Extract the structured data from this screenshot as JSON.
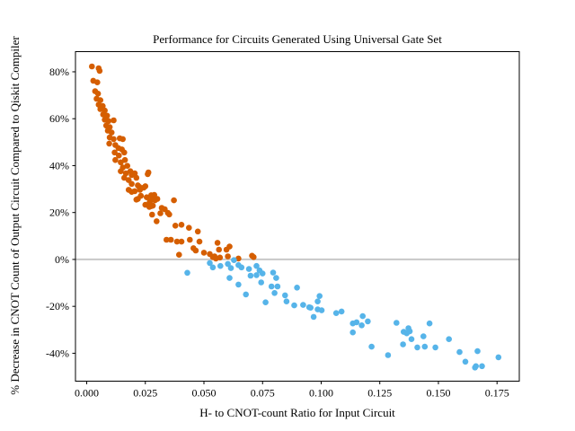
{
  "chart_data": {
    "type": "scatter",
    "title": "Performance for Circuits Generated Using Universal Gate Set",
    "xlabel": "H- to CNOT-count Ratio for Input Circuit",
    "ylabel": "% Decrease in CNOT Count of Output Circuit Compared to Qiskit Compiler",
    "xlim": [
      -0.0048,
      0.1845
    ],
    "ylim": [
      -51.9,
      88.6
    ],
    "grid": false,
    "legend": "none",
    "zero_line": {
      "y": 0,
      "color": "#c8c8c8"
    },
    "axis_color": "#000000",
    "x_ticks": {
      "values": [
        0.0,
        0.025,
        0.05,
        0.075,
        0.1,
        0.125,
        0.15,
        0.175
      ],
      "labels": [
        "0.000",
        "0.025",
        "0.050",
        "0.075",
        "0.100",
        "0.125",
        "0.150",
        "0.175"
      ]
    },
    "y_ticks": {
      "values": [
        -40,
        -20,
        0,
        20,
        40,
        60,
        80
      ],
      "labels": [
        "-40%",
        "-20%",
        "0%",
        "20%",
        "40%",
        "60%",
        "80%"
      ]
    },
    "series": [
      {
        "name": "orange",
        "color": "#D55E00",
        "points": [
          [
            0.0022,
            82.3
          ],
          [
            0.0051,
            81.5
          ],
          [
            0.0055,
            80.4
          ],
          [
            0.0028,
            76.2
          ],
          [
            0.0045,
            75.5
          ],
          [
            0.0036,
            71.7
          ],
          [
            0.0048,
            70.7
          ],
          [
            0.0042,
            68.5
          ],
          [
            0.0058,
            67.9
          ],
          [
            0.0051,
            66.0
          ],
          [
            0.0068,
            65.4
          ],
          [
            0.0058,
            64.1
          ],
          [
            0.0077,
            63.5
          ],
          [
            0.007,
            61.8
          ],
          [
            0.0087,
            61.3
          ],
          [
            0.0077,
            59.6
          ],
          [
            0.0093,
            59.0
          ],
          [
            0.0115,
            59.3
          ],
          [
            0.0083,
            57.1
          ],
          [
            0.0098,
            56.4
          ],
          [
            0.009,
            54.9
          ],
          [
            0.0106,
            54.1
          ],
          [
            0.0098,
            52.0
          ],
          [
            0.0115,
            51.3
          ],
          [
            0.0096,
            49.4
          ],
          [
            0.0122,
            48.8
          ],
          [
            0.0141,
            51.6
          ],
          [
            0.0154,
            51.3
          ],
          [
            0.0135,
            47.5
          ],
          [
            0.015,
            46.9
          ],
          [
            0.0119,
            45.6
          ],
          [
            0.0137,
            44.3
          ],
          [
            0.016,
            45.6
          ],
          [
            0.0122,
            42.4
          ],
          [
            0.0145,
            41.4
          ],
          [
            0.0163,
            42.4
          ],
          [
            0.0154,
            39.2
          ],
          [
            0.0173,
            39.9
          ],
          [
            0.0145,
            37.6
          ],
          [
            0.0167,
            36.7
          ],
          [
            0.0186,
            37.6
          ],
          [
            0.016,
            34.8
          ],
          [
            0.0179,
            33.8
          ],
          [
            0.0205,
            36.7
          ],
          [
            0.0212,
            34.8
          ],
          [
            0.0192,
            32.2
          ],
          [
            0.0218,
            31.6
          ],
          [
            0.0179,
            29.7
          ],
          [
            0.0205,
            29.1
          ],
          [
            0.0227,
            29.7
          ],
          [
            0.0263,
            37.1
          ],
          [
            0.025,
            31.2
          ],
          [
            0.0231,
            27.1
          ],
          [
            0.0256,
            26.5
          ],
          [
            0.0275,
            27.4
          ],
          [
            0.0269,
            24.6
          ],
          [
            0.0291,
            25.2
          ],
          [
            0.025,
            23.3
          ],
          [
            0.0275,
            22.7
          ],
          [
            0.0218,
            25.8
          ],
          [
            0.0192,
            36.0
          ],
          [
            0.026,
            36.4
          ],
          [
            0.0224,
            31.0
          ],
          [
            0.0243,
            30.6
          ],
          [
            0.0192,
            28.8
          ],
          [
            0.0212,
            25.5
          ],
          [
            0.0288,
            27.5
          ],
          [
            0.0278,
            25.5
          ],
          [
            0.0301,
            25.8
          ],
          [
            0.0372,
            25.2
          ],
          [
            0.0267,
            22.4
          ],
          [
            0.0282,
            22.9
          ],
          [
            0.032,
            22.0
          ],
          [
            0.0333,
            21.4
          ],
          [
            0.0346,
            19.9
          ],
          [
            0.0279,
            19.1
          ],
          [
            0.0298,
            16.3
          ],
          [
            0.0378,
            14.4
          ],
          [
            0.0404,
            14.8
          ],
          [
            0.0436,
            13.5
          ],
          [
            0.034,
            8.4
          ],
          [
            0.0359,
            8.4
          ],
          [
            0.0385,
            7.6
          ],
          [
            0.0404,
            7.6
          ],
          [
            0.044,
            8.4
          ],
          [
            0.0474,
            11.9
          ],
          [
            0.0481,
            7.6
          ],
          [
            0.0455,
            4.8
          ],
          [
            0.0465,
            3.8
          ],
          [
            0.0394,
            2.0
          ],
          [
            0.05,
            2.9
          ],
          [
            0.0525,
            2.3
          ],
          [
            0.0558,
            7.1
          ],
          [
            0.0564,
            4.2
          ],
          [
            0.0545,
            1.3
          ],
          [
            0.0568,
            0.8
          ],
          [
            0.0596,
            4.2
          ],
          [
            0.0602,
            1.3
          ],
          [
            0.0314,
            19.7
          ],
          [
            0.0352,
            19.2
          ],
          [
            0.0609,
            5.5
          ],
          [
            0.0538,
            1.0
          ],
          [
            0.0551,
            0.4
          ],
          [
            0.0705,
            1.6
          ],
          [
            0.0712,
            1.0
          ],
          [
            0.0647,
            0.4
          ]
        ]
      },
      {
        "name": "blue",
        "color": "#56B4E9",
        "points": [
          [
            0.0429,
            -5.7
          ],
          [
            0.0525,
            -1.5
          ],
          [
            0.0538,
            -3.4
          ],
          [
            0.057,
            -2.8
          ],
          [
            0.0602,
            -1.9
          ],
          [
            0.0615,
            -3.7
          ],
          [
            0.0628,
            -0.3
          ],
          [
            0.0647,
            -2.4
          ],
          [
            0.066,
            -3.4
          ],
          [
            0.0609,
            -7.9
          ],
          [
            0.0692,
            -4.1
          ],
          [
            0.0724,
            -2.8
          ],
          [
            0.0737,
            -4.7
          ],
          [
            0.0724,
            -6.7
          ],
          [
            0.0699,
            -6.9
          ],
          [
            0.075,
            -6.0
          ],
          [
            0.0744,
            -9.8
          ],
          [
            0.0795,
            -5.6
          ],
          [
            0.0788,
            -11.5
          ],
          [
            0.0808,
            -7.9
          ],
          [
            0.0814,
            -11.5
          ],
          [
            0.0801,
            -14.3
          ],
          [
            0.0679,
            -14.9
          ],
          [
            0.0647,
            -10.7
          ],
          [
            0.0763,
            -18.3
          ],
          [
            0.0846,
            -15.3
          ],
          [
            0.0852,
            -17.9
          ],
          [
            0.0897,
            -12.0
          ],
          [
            0.0885,
            -19.6
          ],
          [
            0.0923,
            -19.4
          ],
          [
            0.0949,
            -20.4
          ],
          [
            0.0993,
            -15.6
          ],
          [
            0.0985,
            -17.9
          ],
          [
            0.0955,
            -20.6
          ],
          [
            0.0985,
            -21.3
          ],
          [
            0.1002,
            -21.7
          ],
          [
            0.0968,
            -24.5
          ],
          [
            0.1064,
            -22.9
          ],
          [
            0.1087,
            -22.2
          ],
          [
            0.1135,
            -27.3
          ],
          [
            0.1151,
            -26.8
          ],
          [
            0.1177,
            -24.2
          ],
          [
            0.1173,
            -28.1
          ],
          [
            0.1199,
            -26.4
          ],
          [
            0.1135,
            -31.1
          ],
          [
            0.1215,
            -37.2
          ],
          [
            0.1285,
            -40.8
          ],
          [
            0.1321,
            -27.0
          ],
          [
            0.1352,
            -30.9
          ],
          [
            0.1365,
            -31.5
          ],
          [
            0.1349,
            -36.2
          ],
          [
            0.1372,
            -29.3
          ],
          [
            0.1378,
            -30.6
          ],
          [
            0.1385,
            -34.0
          ],
          [
            0.1462,
            -27.3
          ],
          [
            0.1436,
            -32.8
          ],
          [
            0.141,
            -37.5
          ],
          [
            0.1442,
            -37.2
          ],
          [
            0.1487,
            -37.5
          ],
          [
            0.1545,
            -34.0
          ],
          [
            0.159,
            -39.5
          ],
          [
            0.1615,
            -43.6
          ],
          [
            0.1667,
            -39.1
          ],
          [
            0.166,
            -45.5
          ],
          [
            0.1656,
            -46.1
          ],
          [
            0.1686,
            -45.5
          ],
          [
            0.1756,
            -41.7
          ]
        ]
      }
    ]
  }
}
